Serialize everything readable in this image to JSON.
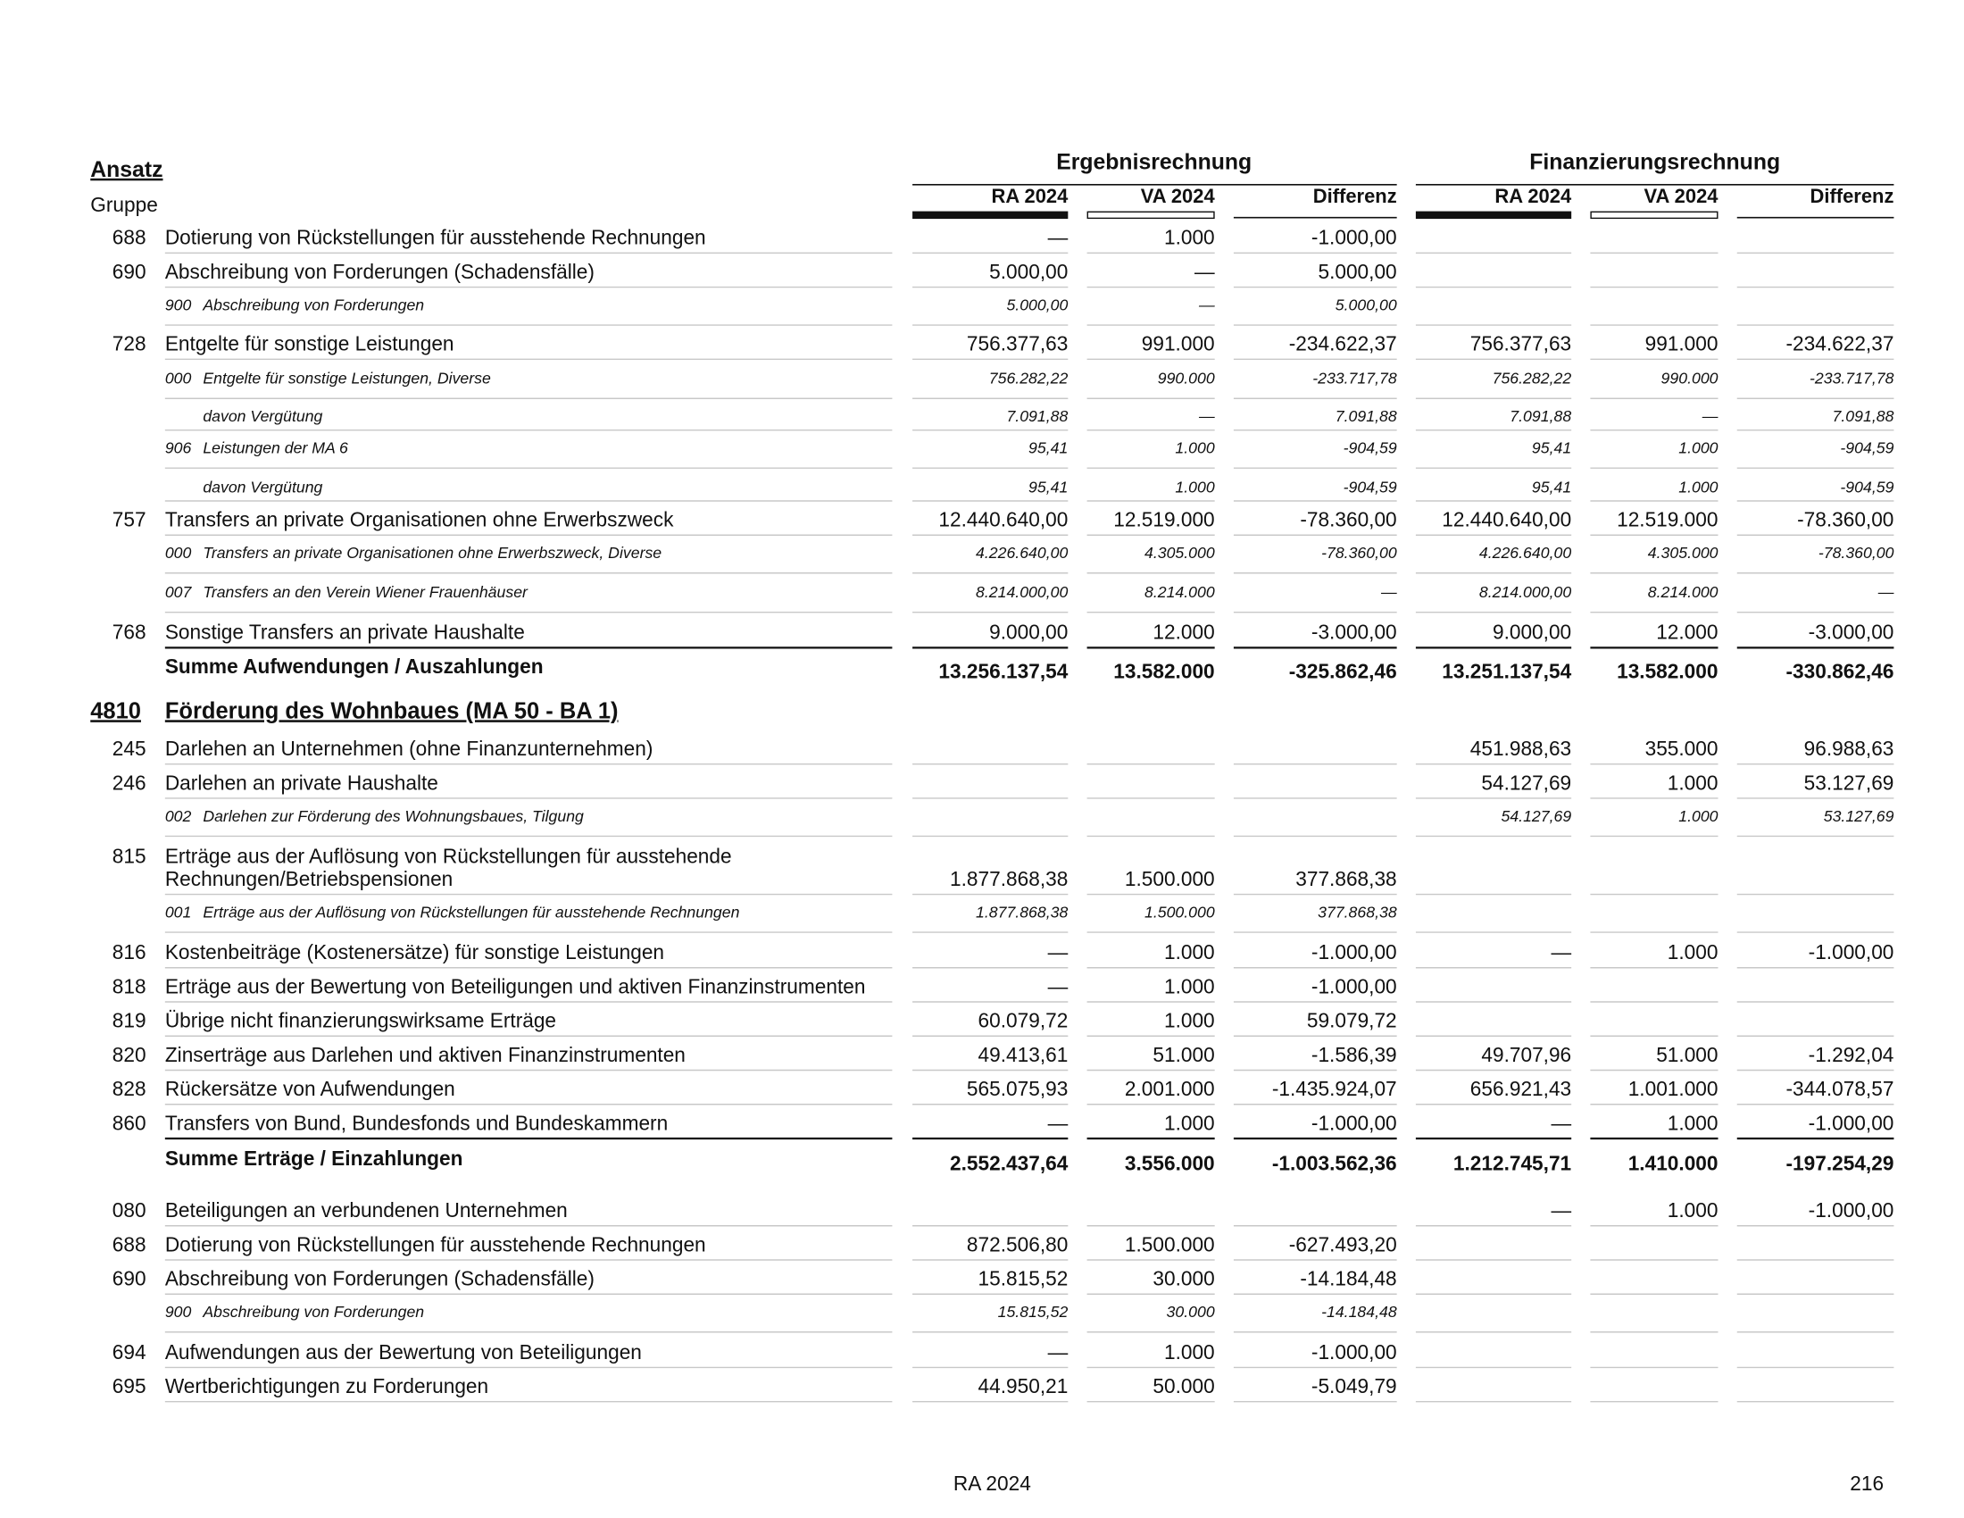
{
  "header": {
    "ansatz": "Ansatz",
    "gruppe": "Gruppe",
    "group_titles": [
      "Ergebnisrechnung",
      "Finanzierungsrechnung"
    ],
    "columns": [
      "RA 2024",
      "VA 2024",
      "Differenz",
      "RA 2024",
      "VA 2024",
      "Differenz"
    ]
  },
  "rows": [
    {
      "kind": "main",
      "code": "688",
      "label": "Dotierung von Rückstellungen für ausstehende Rechnungen",
      "values": [
        "—",
        "1.000",
        "-1.000,00",
        null,
        null,
        null
      ]
    },
    {
      "kind": "main",
      "code": "690",
      "label": "Abschreibung von Forderungen (Schadensfälle)",
      "values": [
        "5.000,00",
        "—",
        "5.000,00",
        null,
        null,
        null
      ]
    },
    {
      "kind": "sub",
      "code": "900",
      "label": "Abschreibung von Forderungen",
      "values": [
        "5.000,00",
        "—",
        "5.000,00",
        null,
        null,
        null
      ]
    },
    {
      "kind": "main",
      "code": "728",
      "label": "Entgelte für sonstige Leistungen",
      "values": [
        "756.377,63",
        "991.000",
        "-234.622,37",
        "756.377,63",
        "991.000",
        "-234.622,37"
      ]
    },
    {
      "kind": "sub",
      "code": "000",
      "label": "Entgelte für sonstige Leistungen, Diverse",
      "values": [
        "756.282,22",
        "990.000",
        "-233.717,78",
        "756.282,22",
        "990.000",
        "-233.717,78"
      ]
    },
    {
      "kind": "davon",
      "label": "davon Vergütung",
      "values": [
        "7.091,88",
        "—",
        "7.091,88",
        "7.091,88",
        "—",
        "7.091,88"
      ]
    },
    {
      "kind": "sub",
      "code": "906",
      "label": "Leistungen der MA 6",
      "values": [
        "95,41",
        "1.000",
        "-904,59",
        "95,41",
        "1.000",
        "-904,59"
      ]
    },
    {
      "kind": "davon",
      "label": "davon Vergütung",
      "values": [
        "95,41",
        "1.000",
        "-904,59",
        "95,41",
        "1.000",
        "-904,59"
      ]
    },
    {
      "kind": "main",
      "code": "757",
      "label": "Transfers an private Organisationen ohne Erwerbszweck",
      "values": [
        "12.440.640,00",
        "12.519.000",
        "-78.360,00",
        "12.440.640,00",
        "12.519.000",
        "-78.360,00"
      ]
    },
    {
      "kind": "sub",
      "code": "000",
      "label": "Transfers an private Organisationen ohne Erwerbszweck, Diverse",
      "values": [
        "4.226.640,00",
        "4.305.000",
        "-78.360,00",
        "4.226.640,00",
        "4.305.000",
        "-78.360,00"
      ]
    },
    {
      "kind": "sub",
      "code": "007",
      "label": "Transfers an den Verein Wiener Frauenhäuser",
      "values": [
        "8.214.000,00",
        "8.214.000",
        "—",
        "8.214.000,00",
        "8.214.000",
        "—"
      ]
    },
    {
      "kind": "main",
      "code": "768",
      "label": "Sonstige Transfers an private Haushalte",
      "values": [
        "9.000,00",
        "12.000",
        "-3.000,00",
        "9.000,00",
        "12.000",
        "-3.000,00"
      ]
    },
    {
      "kind": "sum",
      "label": "Summe Aufwendungen / Auszahlungen",
      "values": [
        "13.256.137,54",
        "13.582.000",
        "-325.862,46",
        "13.251.137,54",
        "13.582.000",
        "-330.862,46"
      ]
    },
    {
      "kind": "section",
      "code": "4810",
      "label": "Förderung des Wohnbaues (MA 50 - BA 1)"
    },
    {
      "kind": "main",
      "code": "245",
      "label": "Darlehen an Unternehmen (ohne Finanzunternehmen)",
      "values": [
        null,
        null,
        null,
        "451.988,63",
        "355.000",
        "96.988,63"
      ]
    },
    {
      "kind": "main",
      "code": "246",
      "label": "Darlehen an private Haushalte",
      "values": [
        null,
        null,
        null,
        "54.127,69",
        "1.000",
        "53.127,69"
      ]
    },
    {
      "kind": "sub",
      "code": "002",
      "label": "Darlehen zur Förderung des Wohnungsbaues, Tilgung",
      "values": [
        null,
        null,
        null,
        "54.127,69",
        "1.000",
        "53.127,69"
      ]
    },
    {
      "kind": "main",
      "code": "815",
      "label": [
        "Erträge aus der Auflösung von Rückstellungen für ausstehende",
        "Rechnungen/Betriebspensionen"
      ],
      "values": [
        "1.877.868,38",
        "1.500.000",
        "377.868,38",
        null,
        null,
        null
      ]
    },
    {
      "kind": "sub",
      "code": "001",
      "label": "Erträge aus der Auflösung von Rückstellungen für ausstehende Rechnungen",
      "values": [
        "1.877.868,38",
        "1.500.000",
        "377.868,38",
        null,
        null,
        null
      ]
    },
    {
      "kind": "main",
      "code": "816",
      "label": "Kostenbeiträge (Kostenersätze) für sonstige Leistungen",
      "values": [
        "—",
        "1.000",
        "-1.000,00",
        "—",
        "1.000",
        "-1.000,00"
      ]
    },
    {
      "kind": "main",
      "code": "818",
      "label": "Erträge aus der Bewertung von Beteiligungen und aktiven Finanzinstrumenten",
      "values": [
        "—",
        "1.000",
        "-1.000,00",
        null,
        null,
        null
      ]
    },
    {
      "kind": "main",
      "code": "819",
      "label": "Übrige nicht finanzierungswirksame Erträge",
      "values": [
        "60.079,72",
        "1.000",
        "59.079,72",
        null,
        null,
        null
      ]
    },
    {
      "kind": "main",
      "code": "820",
      "label": "Zinserträge aus Darlehen und aktiven Finanzinstrumenten",
      "values": [
        "49.413,61",
        "51.000",
        "-1.586,39",
        "49.707,96",
        "51.000",
        "-1.292,04"
      ]
    },
    {
      "kind": "main",
      "code": "828",
      "label": "Rückersätze von Aufwendungen",
      "values": [
        "565.075,93",
        "2.001.000",
        "-1.435.924,07",
        "656.921,43",
        "1.001.000",
        "-344.078,57"
      ]
    },
    {
      "kind": "main",
      "code": "860",
      "label": "Transfers von Bund, Bundesfonds und Bundeskammern",
      "values": [
        "—",
        "1.000",
        "-1.000,00",
        "—",
        "1.000",
        "-1.000,00"
      ]
    },
    {
      "kind": "sum",
      "label": "Summe Erträge / Einzahlungen",
      "values": [
        "2.552.437,64",
        "3.556.000",
        "-1.003.562,36",
        "1.212.745,71",
        "1.410.000",
        "-197.254,29"
      ]
    },
    {
      "kind": "main",
      "code": "080",
      "label": "Beteiligungen an verbundenen Unternehmen",
      "values": [
        null,
        null,
        null,
        "—",
        "1.000",
        "-1.000,00"
      ]
    },
    {
      "kind": "main",
      "code": "688",
      "label": "Dotierung von Rückstellungen für ausstehende Rechnungen",
      "values": [
        "872.506,80",
        "1.500.000",
        "-627.493,20",
        null,
        null,
        null
      ]
    },
    {
      "kind": "main",
      "code": "690",
      "label": "Abschreibung von Forderungen (Schadensfälle)",
      "values": [
        "15.815,52",
        "30.000",
        "-14.184,48",
        null,
        null,
        null
      ]
    },
    {
      "kind": "sub",
      "code": "900",
      "label": "Abschreibung von Forderungen",
      "values": [
        "15.815,52",
        "30.000",
        "-14.184,48",
        null,
        null,
        null
      ]
    },
    {
      "kind": "main",
      "code": "694",
      "label": "Aufwendungen aus der Bewertung von Beteiligungen",
      "values": [
        "—",
        "1.000",
        "-1.000,00",
        null,
        null,
        null
      ]
    },
    {
      "kind": "main",
      "code": "695",
      "label": "Wertberichtigungen zu Forderungen",
      "values": [
        "44.950,21",
        "50.000",
        "-5.049,79",
        null,
        null,
        null
      ]
    }
  ],
  "footer": {
    "left": "RA 2024",
    "page": "216"
  }
}
